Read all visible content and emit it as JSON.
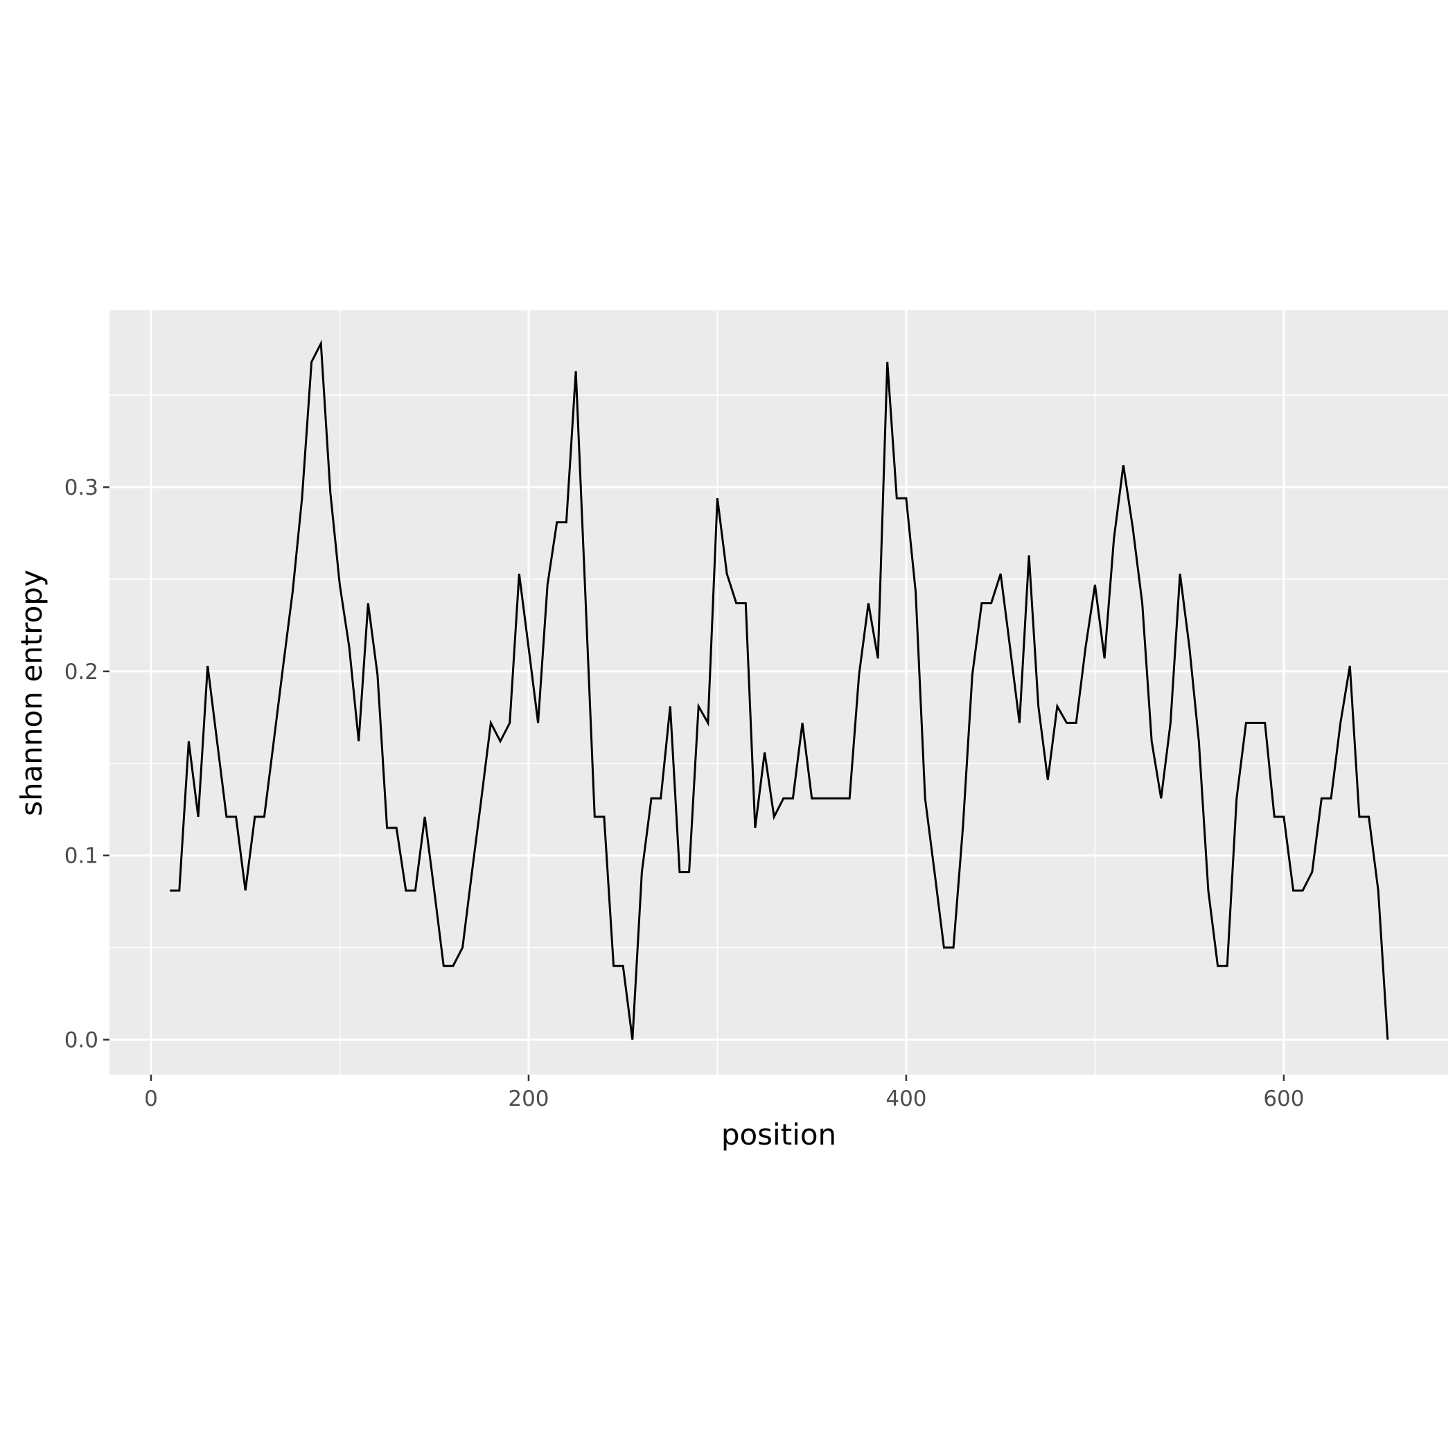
{
  "chart_data": {
    "type": "line",
    "title": "",
    "xlabel": "position",
    "ylabel": "shannon entropy",
    "xlim": [
      -22,
      687
    ],
    "ylim": [
      -0.019,
      0.396
    ],
    "x_ticks": [
      0,
      200,
      400,
      600
    ],
    "x_tick_labels": [
      "0",
      "200",
      "400",
      "600"
    ],
    "y_ticks": [
      0.0,
      0.1,
      0.2,
      0.3
    ],
    "y_tick_labels": [
      "0.0",
      "0.1",
      "0.2",
      "0.3"
    ],
    "grid": true,
    "legend": "none",
    "colors": {
      "panel": "#ebebeb",
      "grid": "#ffffff",
      "line": "#000000",
      "tick_text": "#4d4d4d"
    },
    "series": [
      {
        "x": [
          10,
          15,
          20,
          25,
          30,
          35,
          40,
          45,
          50,
          55,
          60,
          65,
          70,
          75,
          80,
          85,
          90,
          95,
          100,
          105,
          110,
          115,
          120,
          125,
          130,
          135,
          140,
          145,
          150,
          155,
          160,
          165,
          170,
          175,
          180,
          185,
          190,
          195,
          200,
          205,
          210,
          215,
          220,
          225,
          230,
          235,
          240,
          245,
          250,
          255,
          260,
          265,
          270,
          275,
          280,
          285,
          290,
          295,
          300,
          305,
          310,
          315,
          320,
          325,
          330,
          335,
          340,
          345,
          350,
          355,
          360,
          365,
          370,
          375,
          380,
          385,
          390,
          395,
          400,
          405,
          410,
          415,
          420,
          425,
          430,
          435,
          440,
          445,
          450,
          455,
          460,
          465,
          470,
          475,
          480,
          485,
          490,
          495,
          500,
          505,
          510,
          515,
          520,
          525,
          530,
          535,
          540,
          545,
          550,
          555,
          560,
          565,
          570,
          575,
          580,
          585,
          590,
          595,
          600,
          605,
          610,
          615,
          620,
          625,
          630,
          635,
          640,
          645,
          650,
          655
        ],
        "y": [
          0.081,
          0.081,
          0.162,
          0.121,
          0.203,
          0.162,
          0.121,
          0.121,
          0.081,
          0.121,
          0.121,
          0.162,
          0.203,
          0.243,
          0.294,
          0.368,
          0.378,
          0.297,
          0.247,
          0.213,
          0.162,
          0.237,
          0.198,
          0.115,
          0.115,
          0.081,
          0.081,
          0.121,
          0.081,
          0.04,
          0.04,
          0.05,
          0.091,
          0.131,
          0.172,
          0.162,
          0.172,
          0.253,
          0.213,
          0.172,
          0.247,
          0.281,
          0.281,
          0.363,
          0.243,
          0.121,
          0.121,
          0.04,
          0.04,
          0.0,
          0.091,
          0.131,
          0.131,
          0.181,
          0.091,
          0.091,
          0.181,
          0.172,
          0.294,
          0.253,
          0.237,
          0.237,
          0.115,
          0.156,
          0.121,
          0.131,
          0.131,
          0.172,
          0.131,
          0.131,
          0.131,
          0.131,
          0.131,
          0.198,
          0.237,
          0.207,
          0.368,
          0.294,
          0.294,
          0.243,
          0.131,
          0.091,
          0.05,
          0.05,
          0.115,
          0.198,
          0.237,
          0.237,
          0.253,
          0.213,
          0.172,
          0.263,
          0.181,
          0.141,
          0.181,
          0.172,
          0.172,
          0.213,
          0.247,
          0.207,
          0.272,
          0.312,
          0.278,
          0.237,
          0.162,
          0.131,
          0.172,
          0.253,
          0.213,
          0.162,
          0.081,
          0.04,
          0.04,
          0.131,
          0.172,
          0.172,
          0.172,
          0.121,
          0.121,
          0.081,
          0.081,
          0.091,
          0.131,
          0.131,
          0.172,
          0.203,
          0.121,
          0.121,
          0.081,
          0.0
        ]
      }
    ]
  }
}
